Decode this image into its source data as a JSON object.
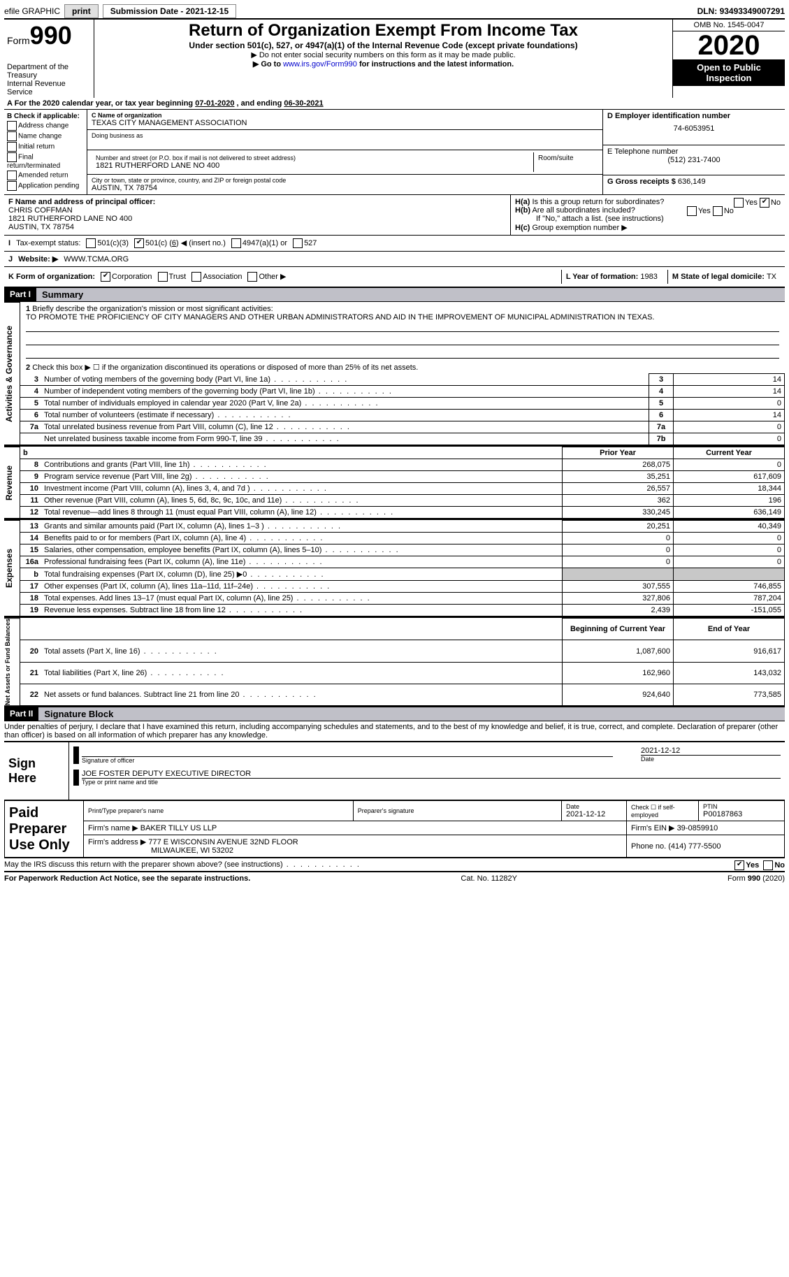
{
  "topbar": {
    "efile_label": "efile GRAPHIC",
    "print_btn": "print",
    "submission_label": "Submission Date - ",
    "submission_date": "2021-12-15",
    "dln_label": "DLN: ",
    "dln": "93493349007291"
  },
  "header": {
    "form_word": "Form",
    "form_num": "990",
    "dept": "Department of the Treasury",
    "irs": "Internal Revenue Service",
    "title": "Return of Organization Exempt From Income Tax",
    "subtitle": "Under section 501(c), 527, or 4947(a)(1) of the Internal Revenue Code (except private foundations)",
    "instr1": "▶ Do not enter social security numbers on this form as it may be made public.",
    "instr2_pre": "▶ Go to ",
    "instr2_link": "www.irs.gov/Form990",
    "instr2_post": " for instructions and the latest information.",
    "omb": "OMB No. 1545-0047",
    "year": "2020",
    "open1": "Open to Public",
    "open2": "Inspection"
  },
  "line_a": {
    "prefix": "A For the 2020 calendar year, or tax year beginning ",
    "begin": "07-01-2020",
    "mid": " , and ending ",
    "end": "06-30-2021"
  },
  "b": {
    "header": "B Check if applicable:",
    "opts": [
      "Address change",
      "Name change",
      "Initial return",
      "Final return/terminated",
      "Amended return",
      "Application pending"
    ]
  },
  "c": {
    "name_label": "C Name of organization",
    "name": "TEXAS CITY MANAGEMENT ASSOCIATION",
    "dba_label": "Doing business as",
    "street_label": "Number and street (or P.O. box if mail is not delivered to street address)",
    "room_label": "Room/suite",
    "street": "1821 RUTHERFORD LANE NO 400",
    "city_label": "City or town, state or province, country, and ZIP or foreign postal code",
    "city": "AUSTIN, TX  78754"
  },
  "d": {
    "ein_label": "D Employer identification number",
    "ein": "74-6053951",
    "tel_label": "E Telephone number",
    "tel": "(512) 231-7400",
    "gross_label": "G Gross receipts $ ",
    "gross": "636,149"
  },
  "f": {
    "label": "F Name and address of principal officer:",
    "name": "CHRIS COFFMAN",
    "addr1": "1821 RUTHERFORD LANE NO 400",
    "addr2": "AUSTIN, TX  78754"
  },
  "h": {
    "a_label": "H(a)",
    "a_text": "Is this a group return for subordinates?",
    "a_yes": "Yes",
    "a_no": "No",
    "b_label": "H(b)",
    "b_text": "Are all subordinates included?",
    "b_note": "If \"No,\" attach a list. (see instructions)",
    "c_label": "H(c)",
    "c_text": "Group exemption number ▶"
  },
  "i": {
    "label": "I",
    "text": "Tax-exempt status:",
    "opt1": "501(c)(3)",
    "opt2_pre": "501(c) (",
    "opt2_val": "6",
    "opt2_post": ") ◀ (insert no.)",
    "opt3": "4947(a)(1) or",
    "opt4": "527"
  },
  "j": {
    "label": "J",
    "text": "Website: ▶",
    "url": "WWW.TCMA.ORG"
  },
  "k": {
    "label": "K Form of organization:",
    "corp": "Corporation",
    "trust": "Trust",
    "assoc": "Association",
    "other": "Other ▶",
    "l_label": "L Year of formation: ",
    "l_val": "1983",
    "m_label": "M State of legal domicile: ",
    "m_val": "TX"
  },
  "part1": {
    "header": "Part I",
    "title": "Summary",
    "line1_label": "1",
    "line1_text": "Briefly describe the organization's mission or most significant activities:",
    "mission": "TO PROMOTE THE PROFICIENCY OF CITY MANAGERS AND OTHER URBAN ADMINISTRATORS AND AID IN THE IMPROVEMENT OF MUNICIPAL ADMINISTRATION IN TEXAS.",
    "line2_label": "2",
    "line2_text": "Check this box ▶ ☐ if the organization discontinued its operations or disposed of more than 25% of its net assets.",
    "vert_gov": "Activities & Governance",
    "vert_rev": "Revenue",
    "vert_exp": "Expenses",
    "vert_net": "Net Assets or Fund Balances",
    "col_prior": "Prior Year",
    "col_current": "Current Year",
    "col_begin": "Beginning of Current Year",
    "col_end": "End of Year",
    "rows_gov": [
      {
        "n": "3",
        "desc": "Number of voting members of the governing body (Part VI, line 1a)",
        "cell": "3",
        "val": "14"
      },
      {
        "n": "4",
        "desc": "Number of independent voting members of the governing body (Part VI, line 1b)",
        "cell": "4",
        "val": "14"
      },
      {
        "n": "5",
        "desc": "Total number of individuals employed in calendar year 2020 (Part V, line 2a)",
        "cell": "5",
        "val": "0"
      },
      {
        "n": "6",
        "desc": "Total number of volunteers (estimate if necessary)",
        "cell": "6",
        "val": "14"
      },
      {
        "n": "7a",
        "desc": "Total unrelated business revenue from Part VIII, column (C), line 12",
        "cell": "7a",
        "val": "0"
      },
      {
        "n": "",
        "desc": "Net unrelated business taxable income from Form 990-T, line 39",
        "cell": "7b",
        "val": "0"
      }
    ],
    "rows_rev": [
      {
        "n": "8",
        "desc": "Contributions and grants (Part VIII, line 1h)",
        "p": "268,075",
        "c": "0"
      },
      {
        "n": "9",
        "desc": "Program service revenue (Part VIII, line 2g)",
        "p": "35,251",
        "c": "617,609"
      },
      {
        "n": "10",
        "desc": "Investment income (Part VIII, column (A), lines 3, 4, and 7d )",
        "p": "26,557",
        "c": "18,344"
      },
      {
        "n": "11",
        "desc": "Other revenue (Part VIII, column (A), lines 5, 6d, 8c, 9c, 10c, and 11e)",
        "p": "362",
        "c": "196"
      },
      {
        "n": "12",
        "desc": "Total revenue—add lines 8 through 11 (must equal Part VIII, column (A), line 12)",
        "p": "330,245",
        "c": "636,149"
      }
    ],
    "rows_exp": [
      {
        "n": "13",
        "desc": "Grants and similar amounts paid (Part IX, column (A), lines 1–3 )",
        "p": "20,251",
        "c": "40,349"
      },
      {
        "n": "14",
        "desc": "Benefits paid to or for members (Part IX, column (A), line 4)",
        "p": "0",
        "c": "0"
      },
      {
        "n": "15",
        "desc": "Salaries, other compensation, employee benefits (Part IX, column (A), lines 5–10)",
        "p": "0",
        "c": "0"
      },
      {
        "n": "16a",
        "desc": "Professional fundraising fees (Part IX, column (A), line 11e)",
        "p": "0",
        "c": "0"
      },
      {
        "n": "b",
        "desc": "Total fundraising expenses (Part IX, column (D), line 25) ▶0",
        "p": "",
        "c": "",
        "shade": true
      },
      {
        "n": "17",
        "desc": "Other expenses (Part IX, column (A), lines 11a–11d, 11f–24e)",
        "p": "307,555",
        "c": "746,855"
      },
      {
        "n": "18",
        "desc": "Total expenses. Add lines 13–17 (must equal Part IX, column (A), line 25)",
        "p": "327,806",
        "c": "787,204"
      },
      {
        "n": "19",
        "desc": "Revenue less expenses. Subtract line 18 from line 12",
        "p": "2,439",
        "c": "-151,055"
      }
    ],
    "rows_net": [
      {
        "n": "20",
        "desc": "Total assets (Part X, line 16)",
        "p": "1,087,600",
        "c": "916,617"
      },
      {
        "n": "21",
        "desc": "Total liabilities (Part X, line 26)",
        "p": "162,960",
        "c": "143,032"
      },
      {
        "n": "22",
        "desc": "Net assets or fund balances. Subtract line 21 from line 20",
        "p": "924,640",
        "c": "773,585"
      }
    ]
  },
  "part2": {
    "header": "Part II",
    "title": "Signature Block",
    "penalty": "Under penalties of perjury, I declare that I have examined this return, including accompanying schedules and statements, and to the best of my knowledge and belief, it is true, correct, and complete. Declaration of preparer (other than officer) is based on all information of which preparer has any knowledge.",
    "sign_here": "Sign Here",
    "sig_officer": "Signature of officer",
    "sig_date_label": "Date",
    "sig_date": "2021-12-12",
    "officer_name": "JOE FOSTER  DEPUTY EXECUTIVE DIRECTOR",
    "officer_sub": "Type or print name and title",
    "paid_label": "Paid Preparer Use Only",
    "prep_name_label": "Print/Type preparer's name",
    "prep_sig_label": "Preparer's signature",
    "prep_date_label": "Date",
    "prep_date": "2021-12-12",
    "check_se_label": "Check ☐ if self-employed",
    "ptin_label": "PTIN",
    "ptin": "P00187863",
    "firm_name_label": "Firm's name  ▶ ",
    "firm_name": "BAKER TILLY US LLP",
    "firm_ein_label": "Firm's EIN ▶ ",
    "firm_ein": "39-0859910",
    "firm_addr_label": "Firm's address ▶ ",
    "firm_addr1": "777 E WISCONSIN AVENUE 32ND FLOOR",
    "firm_addr2": "MILWAUKEE, WI  53202",
    "firm_phone_label": "Phone no. ",
    "firm_phone": "(414) 777-5500",
    "discuss": "May the IRS discuss this return with the preparer shown above? (see instructions)",
    "yes": "Yes",
    "no": "No"
  },
  "footer": {
    "left": "For Paperwork Reduction Act Notice, see the separate instructions.",
    "mid": "Cat. No. 11282Y",
    "right": "Form 990 (2020)"
  }
}
